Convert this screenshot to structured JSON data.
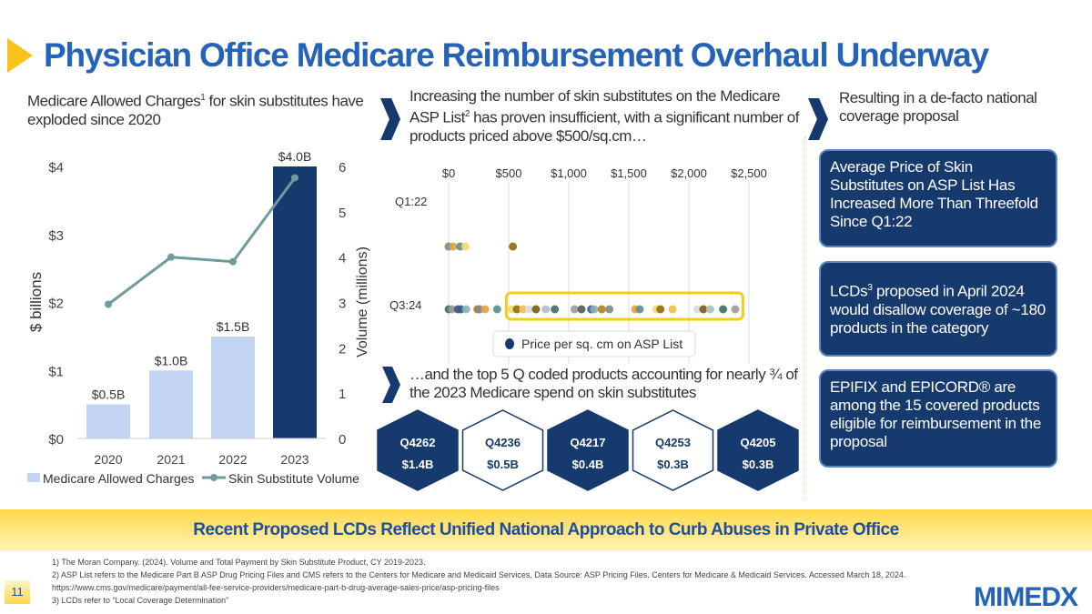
{
  "title": "Physician Office Medicare Reimbursement Overhaul Underway",
  "col1": {
    "text": "Medicare Allowed Charges",
    "sup": "1",
    "text2": " for skin substitutes have exploded since 2020"
  },
  "col2": {
    "text": "Increasing the number of skin substitutes on the Medicare ASP List",
    "sup": "2",
    "text2": " has proven insufficient, with a significant number of products priced above $500/sq.cm…"
  },
  "col3": {
    "text": "Resulting in a de-facto national coverage proposal"
  },
  "boxes": [
    {
      "text": "Average Price of Skin Substitutes on ASP List Has Increased More Than Threefold Since Q1:22"
    },
    {
      "pre": "LCDs",
      "sup": "3",
      "text": " proposed in April 2024 would disallow coverage of ~180 products in the category"
    },
    {
      "text": "EPIFIX and EPICORD® are among the 15 covered products eligible for reimbursement in the proposal"
    }
  ],
  "top5": {
    "text": "…and the top 5 Q coded products accounting for nearly ¾ of the 2023 Medicare spend on skin substitutes",
    "items": [
      {
        "code": "Q4262",
        "value": "$1.4B",
        "filled": true
      },
      {
        "code": "Q4236",
        "value": "$0.5B",
        "filled": false
      },
      {
        "code": "Q4217",
        "value": "$0.4B",
        "filled": true
      },
      {
        "code": "Q4253",
        "value": "$0.3B",
        "filled": false
      },
      {
        "code": "Q4205",
        "value": "$0.3B",
        "filled": true
      }
    ]
  },
  "banner": "Recent Proposed LCDs Reflect Unified National Approach to Curb Abuses in Private Office",
  "footnotes": [
    "1) The Moran Company. (2024). Volume and Total Payment by Skin Substitute Product, CY 2019-2023.",
    "2) ASP List refers to the Medicare Part B ASP Drug Pricing Files and CMS refers to the Centers for Medicare and Medicaid Services, Data Source: ASP Pricing Files. Centers for Medicare & Medicaid Services. Accessed March 18, 2024.",
    "https://www.cms.gov/medicare/payment/all-fee-service-providers/medicare-part-b-drug-average-sales-price/asp-pricing-files",
    "3) LCDs refer to “Local Coverage Determination”"
  ],
  "page_number": "11",
  "logo": "MIMEDX",
  "colors": {
    "navy": "#173a6e",
    "title_blue": "#2563b8",
    "bar_light": "#c3d5f2",
    "line": "#6f9b9b",
    "highlight": "#f6cc16"
  },
  "chart_data": [
    {
      "type": "bar+line",
      "categories": [
        "2020",
        "2021",
        "2022",
        "2023"
      ],
      "series": [
        {
          "name": "Medicare Allowed Charges",
          "type": "bar",
          "axis": "left",
          "values": [
            0.5,
            1.0,
            1.5,
            4.0
          ],
          "labels": [
            "$0.5B",
            "$1.0B",
            "$1.5B",
            "$4.0B"
          ]
        },
        {
          "name": "Skin Substitute Volume",
          "type": "line",
          "axis": "right",
          "values": [
            2.96,
            4.0,
            3.9,
            5.75
          ]
        }
      ],
      "ylabel": "$ billions",
      "ylim": [
        0,
        4
      ],
      "yticks": [
        "$0",
        "$1",
        "$2",
        "$3",
        "$4"
      ],
      "y2label": "Volume (millions)",
      "y2lim": [
        0,
        6
      ],
      "y2ticks": [
        "0",
        "1",
        "2",
        "3",
        "4",
        "5",
        "6"
      ],
      "legend": "bottom"
    },
    {
      "type": "scatter",
      "xlim": [
        0,
        2500
      ],
      "xticks": [
        "$0",
        "$500",
        "$1,000",
        "$1,500",
        "$2,000",
        "$2,500"
      ],
      "grid": true,
      "categories": [
        "Q1:22",
        "Q3:24"
      ],
      "legend_label": "Price per sq. cm on ASP List",
      "series": [
        {
          "category": "Q1:22",
          "x": [
            0,
            38,
            96,
            139,
            535
          ]
        },
        {
          "category": "Q3:24",
          "x": [
            0,
            30,
            76,
            101,
            146,
            240,
            258,
            303,
            404,
            525,
            568,
            619,
            669,
            727,
            808,
            884,
            1048,
            1106,
            1187,
            1212,
            1275,
            1338,
            1553,
            1591,
            1730,
            1763,
            1864,
            2071,
            2121,
            2177,
            2285,
            2386
          ]
        }
      ],
      "highlight_range": [
        480,
        2450
      ]
    }
  ]
}
